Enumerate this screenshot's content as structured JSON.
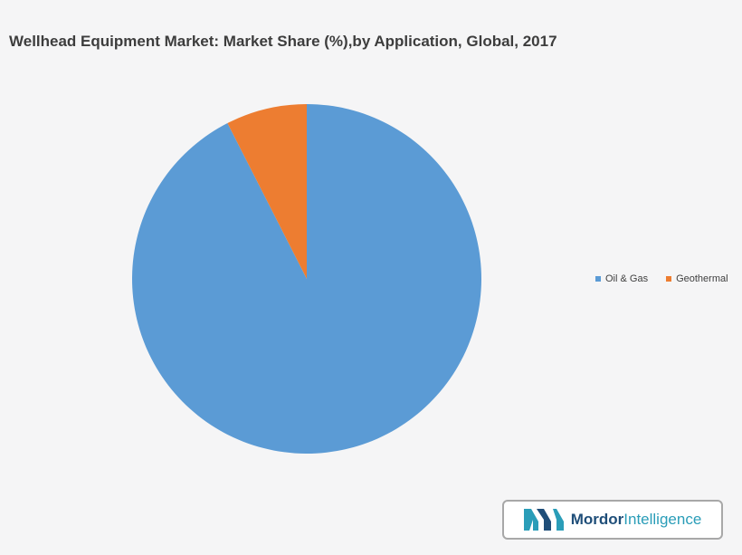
{
  "chart_data": {
    "type": "pie",
    "title": "Wellhead Equipment Market: Market Share (%),by Application, Global, 2017",
    "slices": [
      {
        "label": "Oil & Gas",
        "value": 92.5,
        "color": "#5b9bd5"
      },
      {
        "label": "Geothermal",
        "value": 7.5,
        "color": "#ed7d31"
      }
    ],
    "start": "12 o'clock",
    "direction": "clockwise",
    "legend_position": "right"
  },
  "logo": {
    "brand": "Mordor",
    "suffix": "Intelligence",
    "icon": "mordor-intelligence-logo-icon"
  }
}
